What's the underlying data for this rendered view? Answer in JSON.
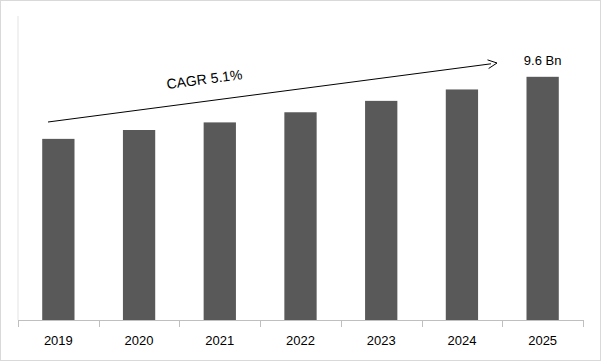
{
  "chart_data": {
    "type": "bar",
    "categories": [
      "2019",
      "2020",
      "2021",
      "2022",
      "2023",
      "2024",
      "2025"
    ],
    "values": [
      7.15,
      7.5,
      7.8,
      8.2,
      8.65,
      9.1,
      9.6
    ],
    "value_labels": [
      null,
      null,
      null,
      null,
      null,
      null,
      "9.6 Bn"
    ],
    "data_labels": true,
    "color": "#595959",
    "ylim": [
      0,
      12
    ],
    "grid": false,
    "tick_labels": "x",
    "annotations": [
      "CAGR 5.1%"
    ]
  }
}
